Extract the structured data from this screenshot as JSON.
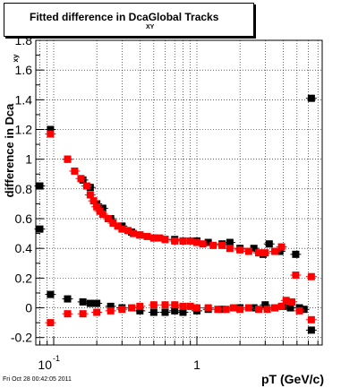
{
  "chart_data": {
    "type": "scatter",
    "title": "Fitted difference in Dca",
    "title_subscript": "XY",
    "title_suffix": "Global Tracks",
    "xlabel": "pT (GeV/c)",
    "ylabel": "difference in Dca",
    "ylabel_subscript": "xy",
    "x_scale": "log",
    "xlim": [
      0.075,
      7.5
    ],
    "ylim": [
      -0.25,
      1.8
    ],
    "x_tick_labels": [
      {
        "value": 0.1,
        "base": "10",
        "exp": "-1"
      },
      {
        "value": 1,
        "label": "1"
      }
    ],
    "y_tick_labels": [
      "-0.2",
      "0",
      "0.2",
      "0.4",
      "0.6",
      "0.8",
      "1",
      "1.2",
      "1.4",
      "1.6",
      "1.8"
    ],
    "grid": true,
    "series": [
      {
        "color": "#000000",
        "points": [
          [
            0.08,
            0.82
          ],
          [
            0.095,
            1.2
          ],
          [
            0.125,
            1.0
          ],
          [
            0.16,
            0.86
          ],
          [
            0.18,
            0.81
          ],
          [
            0.2,
            0.7
          ],
          [
            0.22,
            0.67
          ],
          [
            0.25,
            0.6
          ],
          [
            0.3,
            0.55
          ],
          [
            0.35,
            0.51
          ],
          [
            0.4,
            0.49
          ],
          [
            0.5,
            0.47
          ],
          [
            0.6,
            0.46
          ],
          [
            0.7,
            0.46
          ],
          [
            0.8,
            0.45
          ],
          [
            1.0,
            0.45
          ],
          [
            1.2,
            0.44
          ],
          [
            1.5,
            0.43
          ],
          [
            1.7,
            0.44
          ],
          [
            2.0,
            0.4
          ],
          [
            2.5,
            0.4
          ],
          [
            2.9,
            0.36
          ],
          [
            3.2,
            0.43
          ],
          [
            3.8,
            0.38
          ],
          [
            4.9,
            0.36
          ],
          [
            6.3,
            1.41
          ],
          [
            0.08,
            0.53
          ],
          [
            0.095,
            0.09
          ],
          [
            0.125,
            0.06
          ],
          [
            0.16,
            0.04
          ],
          [
            0.18,
            0.03
          ],
          [
            0.2,
            0.03
          ],
          [
            0.25,
            0.01
          ],
          [
            0.3,
            0.0
          ],
          [
            0.4,
            -0.02
          ],
          [
            0.5,
            -0.03
          ],
          [
            0.6,
            -0.03
          ],
          [
            0.7,
            -0.02
          ],
          [
            0.8,
            -0.03
          ],
          [
            1.0,
            -0.02
          ],
          [
            1.2,
            -0.01
          ],
          [
            1.5,
            -0.01
          ],
          [
            2.0,
            0.0
          ],
          [
            2.5,
            0.0
          ],
          [
            3.0,
            0.02
          ],
          [
            3.5,
            0.0
          ],
          [
            4.0,
            0.01
          ],
          [
            4.5,
            0.0
          ],
          [
            5.2,
            0.0
          ],
          [
            5.6,
            -0.01
          ],
          [
            6.3,
            -0.15
          ]
        ]
      },
      {
        "color": "#ff0000",
        "points": [
          [
            0.095,
            1.17
          ],
          [
            0.125,
            1.0
          ],
          [
            0.14,
            0.92
          ],
          [
            0.155,
            0.87
          ],
          [
            0.17,
            0.82
          ],
          [
            0.18,
            0.76
          ],
          [
            0.19,
            0.72
          ],
          [
            0.2,
            0.68
          ],
          [
            0.21,
            0.65
          ],
          [
            0.22,
            0.63
          ],
          [
            0.24,
            0.6
          ],
          [
            0.26,
            0.57
          ],
          [
            0.28,
            0.55
          ],
          [
            0.3,
            0.53
          ],
          [
            0.33,
            0.52
          ],
          [
            0.36,
            0.5
          ],
          [
            0.4,
            0.49
          ],
          [
            0.45,
            0.48
          ],
          [
            0.5,
            0.47
          ],
          [
            0.55,
            0.47
          ],
          [
            0.6,
            0.46
          ],
          [
            0.7,
            0.45
          ],
          [
            0.8,
            0.45
          ],
          [
            0.9,
            0.45
          ],
          [
            1.0,
            0.44
          ],
          [
            1.1,
            0.43
          ],
          [
            1.3,
            0.42
          ],
          [
            1.5,
            0.42
          ],
          [
            1.7,
            0.4
          ],
          [
            2.0,
            0.39
          ],
          [
            2.3,
            0.38
          ],
          [
            2.7,
            0.37
          ],
          [
            3.0,
            0.37
          ],
          [
            3.5,
            0.38
          ],
          [
            3.9,
            0.41
          ],
          [
            4.9,
            0.22
          ],
          [
            6.3,
            0.21
          ],
          [
            0.095,
            -0.1
          ],
          [
            0.125,
            -0.04
          ],
          [
            0.16,
            -0.04
          ],
          [
            0.2,
            -0.03
          ],
          [
            0.25,
            -0.02
          ],
          [
            0.3,
            -0.01
          ],
          [
            0.35,
            0.0
          ],
          [
            0.4,
            0.01
          ],
          [
            0.5,
            0.02
          ],
          [
            0.6,
            0.02
          ],
          [
            0.7,
            0.02
          ],
          [
            0.8,
            0.01
          ],
          [
            0.9,
            0.01
          ],
          [
            1.0,
            0.0
          ],
          [
            1.2,
            0.0
          ],
          [
            1.4,
            -0.01
          ],
          [
            1.6,
            -0.01
          ],
          [
            1.8,
            0.0
          ],
          [
            2.0,
            -0.01
          ],
          [
            2.3,
            0.0
          ],
          [
            2.7,
            -0.01
          ],
          [
            3.1,
            -0.01
          ],
          [
            3.5,
            0.0
          ],
          [
            3.9,
            0.01
          ],
          [
            4.2,
            0.05
          ],
          [
            4.6,
            0.04
          ],
          [
            5.2,
            -0.02
          ],
          [
            6.3,
            -0.08
          ]
        ]
      }
    ]
  },
  "footer": "Fri Oct 28 00:42:05 2011"
}
